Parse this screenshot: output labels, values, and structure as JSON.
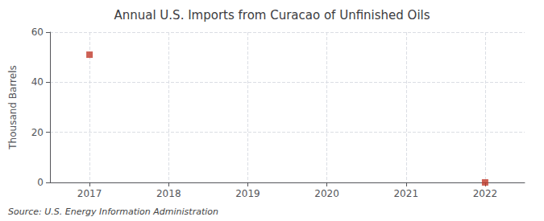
{
  "chart_data": {
    "type": "scatter",
    "title": "Annual U.S. Imports from Curacao of Unfinished Oils",
    "ylabel": "Thousand Barrels",
    "source": "Source: U.S. Energy Information Administration",
    "x": [
      2017,
      2022
    ],
    "values": [
      51,
      0
    ],
    "color": "#c0392b",
    "marker": "square",
    "xlim": [
      2016.5,
      2022.5
    ],
    "xticks": [
      2017,
      2018,
      2019,
      2020,
      2021,
      2022
    ],
    "ylim": [
      0,
      60
    ],
    "yticks": [
      0,
      20,
      40,
      60
    ],
    "grid": true
  }
}
